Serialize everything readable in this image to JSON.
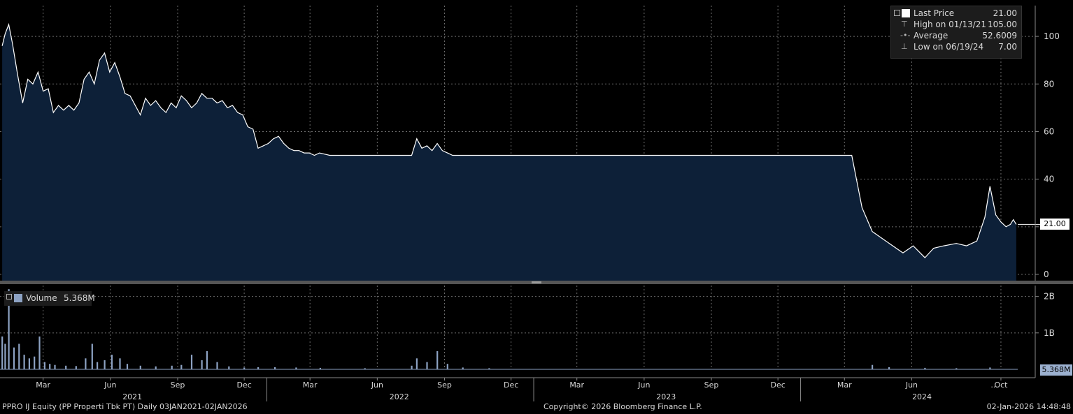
{
  "chart_data": [
    {
      "type": "area",
      "panel": "price",
      "ylim": [
        0,
        110
      ],
      "yticks": [
        {
          "value": 0,
          "label": "0"
        },
        {
          "value": 20,
          "label": "20"
        },
        {
          "value": 40,
          "label": "40"
        },
        {
          "value": 60,
          "label": "60"
        },
        {
          "value": 80,
          "label": "80"
        },
        {
          "value": 100,
          "label": "100"
        }
      ],
      "grid": true,
      "line_color": "#ffffff",
      "fill_color": "#0d2038",
      "series": [
        {
          "name": "Last Price",
          "points": [
            [
              "2021-01-04",
              96
            ],
            [
              "2021-01-08",
              101
            ],
            [
              "2021-01-13",
              105
            ],
            [
              "2021-01-18",
              97
            ],
            [
              "2021-01-25",
              84
            ],
            [
              "2021-02-01",
              72
            ],
            [
              "2021-02-08",
              82
            ],
            [
              "2021-02-15",
              80
            ],
            [
              "2021-02-22",
              85
            ],
            [
              "2021-03-01",
              77
            ],
            [
              "2021-03-08",
              78
            ],
            [
              "2021-03-15",
              68
            ],
            [
              "2021-03-22",
              71
            ],
            [
              "2021-03-29",
              69
            ],
            [
              "2021-04-05",
              71
            ],
            [
              "2021-04-12",
              69
            ],
            [
              "2021-04-19",
              72
            ],
            [
              "2021-04-26",
              82
            ],
            [
              "2021-05-03",
              85
            ],
            [
              "2021-05-10",
              80
            ],
            [
              "2021-05-17",
              90
            ],
            [
              "2021-05-24",
              93
            ],
            [
              "2021-05-31",
              85
            ],
            [
              "2021-06-07",
              89
            ],
            [
              "2021-06-14",
              83
            ],
            [
              "2021-06-21",
              76
            ],
            [
              "2021-06-28",
              75
            ],
            [
              "2021-07-05",
              71
            ],
            [
              "2021-07-12",
              67
            ],
            [
              "2021-07-19",
              74
            ],
            [
              "2021-07-26",
              71
            ],
            [
              "2021-08-02",
              73
            ],
            [
              "2021-08-09",
              70
            ],
            [
              "2021-08-16",
              68
            ],
            [
              "2021-08-23",
              72
            ],
            [
              "2021-08-30",
              70
            ],
            [
              "2021-09-06",
              75
            ],
            [
              "2021-09-13",
              73
            ],
            [
              "2021-09-20",
              70
            ],
            [
              "2021-09-27",
              72
            ],
            [
              "2021-10-04",
              76
            ],
            [
              "2021-10-11",
              74
            ],
            [
              "2021-10-18",
              74
            ],
            [
              "2021-10-25",
              72
            ],
            [
              "2021-11-01",
              73
            ],
            [
              "2021-11-08",
              70
            ],
            [
              "2021-11-15",
              71
            ],
            [
              "2021-11-22",
              68
            ],
            [
              "2021-11-29",
              67
            ],
            [
              "2021-12-06",
              62
            ],
            [
              "2021-12-13",
              61
            ],
            [
              "2021-12-20",
              53
            ],
            [
              "2021-12-27",
              54
            ],
            [
              "2022-01-03",
              55
            ],
            [
              "2022-01-10",
              57
            ],
            [
              "2022-01-17",
              58
            ],
            [
              "2022-01-24",
              55
            ],
            [
              "2022-01-31",
              53
            ],
            [
              "2022-02-07",
              52
            ],
            [
              "2022-02-14",
              52
            ],
            [
              "2022-02-21",
              51
            ],
            [
              "2022-02-28",
              51
            ],
            [
              "2022-03-07",
              50
            ],
            [
              "2022-03-14",
              51
            ],
            [
              "2022-03-28",
              50
            ],
            [
              "2022-05-01",
              50
            ],
            [
              "2022-06-01",
              50
            ],
            [
              "2022-07-01",
              50
            ],
            [
              "2022-07-18",
              50
            ],
            [
              "2022-07-25",
              57
            ],
            [
              "2022-08-01",
              53
            ],
            [
              "2022-08-08",
              54
            ],
            [
              "2022-08-15",
              52
            ],
            [
              "2022-08-22",
              55
            ],
            [
              "2022-08-29",
              52
            ],
            [
              "2022-09-05",
              51
            ],
            [
              "2022-09-12",
              50
            ],
            [
              "2022-09-26",
              50
            ],
            [
              "2023-01-01",
              50
            ],
            [
              "2023-06-01",
              50
            ],
            [
              "2023-12-01",
              50
            ],
            [
              "2024-01-15",
              50
            ],
            [
              "2024-03-01",
              50
            ],
            [
              "2024-03-11",
              50
            ],
            [
              "2024-03-25",
              28
            ],
            [
              "2024-04-08",
              18
            ],
            [
              "2024-04-22",
              15
            ],
            [
              "2024-05-06",
              12
            ],
            [
              "2024-05-20",
              9
            ],
            [
              "2024-06-03",
              12
            ],
            [
              "2024-06-19",
              7
            ],
            [
              "2024-07-01",
              11
            ],
            [
              "2024-07-15",
              12
            ],
            [
              "2024-08-01",
              13
            ],
            [
              "2024-08-15",
              12
            ],
            [
              "2024-08-29",
              14
            ],
            [
              "2024-09-09",
              24
            ],
            [
              "2024-09-16",
              37
            ],
            [
              "2024-09-24",
              25
            ],
            [
              "2024-10-01",
              22
            ],
            [
              "2024-10-08",
              20
            ],
            [
              "2024-10-14",
              21
            ],
            [
              "2024-10-18",
              23
            ],
            [
              "2024-10-22",
              21
            ]
          ]
        }
      ]
    },
    {
      "type": "bar",
      "panel": "volume",
      "ylim": [
        0,
        2300000000
      ],
      "yticks": [
        {
          "value": 1000000000,
          "label": "1B"
        },
        {
          "value": 2000000000,
          "label": "2B"
        }
      ],
      "grid": true,
      "bar_color": "#8da2c3",
      "series": [
        {
          "name": "Volume",
          "points": [
            [
              "2021-01-04",
              900000000
            ],
            [
              "2021-01-08",
              700000000
            ],
            [
              "2021-01-13",
              2200000000
            ],
            [
              "2021-01-20",
              600000000
            ],
            [
              "2021-01-27",
              700000000
            ],
            [
              "2021-02-03",
              400000000
            ],
            [
              "2021-02-10",
              300000000
            ],
            [
              "2021-02-17",
              350000000
            ],
            [
              "2021-02-24",
              900000000
            ],
            [
              "2021-03-03",
              200000000
            ],
            [
              "2021-03-10",
              150000000
            ],
            [
              "2021-03-17",
              120000000
            ],
            [
              "2021-04-01",
              100000000
            ],
            [
              "2021-04-15",
              90000000
            ],
            [
              "2021-04-28",
              300000000
            ],
            [
              "2021-05-07",
              700000000
            ],
            [
              "2021-05-14",
              200000000
            ],
            [
              "2021-05-24",
              250000000
            ],
            [
              "2021-06-03",
              400000000
            ],
            [
              "2021-06-14",
              300000000
            ],
            [
              "2021-06-24",
              150000000
            ],
            [
              "2021-07-12",
              100000000
            ],
            [
              "2021-08-02",
              80000000
            ],
            [
              "2021-08-24",
              100000000
            ],
            [
              "2021-09-06",
              120000000
            ],
            [
              "2021-09-20",
              400000000
            ],
            [
              "2021-10-04",
              250000000
            ],
            [
              "2021-10-11",
              500000000
            ],
            [
              "2021-10-25",
              200000000
            ],
            [
              "2021-11-10",
              80000000
            ],
            [
              "2021-12-01",
              50000000
            ],
            [
              "2021-12-20",
              60000000
            ],
            [
              "2022-01-12",
              60000000
            ],
            [
              "2022-02-10",
              50000000
            ],
            [
              "2022-03-15",
              40000000
            ],
            [
              "2022-05-15",
              30000000
            ],
            [
              "2022-07-18",
              100000000
            ],
            [
              "2022-07-25",
              300000000
            ],
            [
              "2022-08-08",
              200000000
            ],
            [
              "2022-08-22",
              500000000
            ],
            [
              "2022-09-05",
              150000000
            ],
            [
              "2022-09-26",
              50000000
            ],
            [
              "2022-11-01",
              30000000
            ],
            [
              "2024-04-08",
              120000000
            ],
            [
              "2024-05-01",
              60000000
            ],
            [
              "2024-06-19",
              40000000
            ],
            [
              "2024-08-01",
              30000000
            ],
            [
              "2024-09-16",
              50000000
            ],
            [
              "2024-10-22",
              5368000
            ]
          ]
        }
      ]
    }
  ],
  "x_axis": {
    "start": "2021-01-01",
    "end": "2024-10-24",
    "months": [
      {
        "date": "2021-03-01",
        "label": "Mar"
      },
      {
        "date": "2021-06-01",
        "label": "Jun"
      },
      {
        "date": "2021-09-01",
        "label": "Sep"
      },
      {
        "date": "2021-12-01",
        "label": "Dec"
      },
      {
        "date": "2022-03-01",
        "label": "Mar"
      },
      {
        "date": "2022-06-01",
        "label": "Jun"
      },
      {
        "date": "2022-09-01",
        "label": "Sep"
      },
      {
        "date": "2022-12-01",
        "label": "Dec"
      },
      {
        "date": "2023-03-01",
        "label": "Mar"
      },
      {
        "date": "2023-06-01",
        "label": "Jun"
      },
      {
        "date": "2023-09-01",
        "label": "Sep"
      },
      {
        "date": "2023-12-01",
        "label": "Dec"
      },
      {
        "date": "2024-03-01",
        "label": "Mar"
      },
      {
        "date": "2024-06-01",
        "label": "Jun"
      },
      {
        "date": "2024-10-01",
        "label": "Oct"
      }
    ],
    "years": [
      {
        "date": "2021-07-01",
        "label": "2021"
      },
      {
        "date": "2022-07-01",
        "label": "2022"
      },
      {
        "date": "2023-07-01",
        "label": "2023"
      },
      {
        "date": "2024-06-15",
        "label": "2024"
      }
    ],
    "year_boundaries": [
      "2022-01-01",
      "2023-01-01",
      "2024-01-01"
    ],
    "ellipsis": {
      "date": "2024-09-01",
      "label": "..."
    }
  },
  "legend": {
    "last_price_label": "Last Price",
    "last_price_value": "21.00",
    "high_label": "High on 01/13/21",
    "high_value": "105.00",
    "average_label": "Average",
    "average_value": "52.6009",
    "low_label": "Low on 06/19/24",
    "low_value": "7.00"
  },
  "price_tag": "21.00",
  "price_tag_value": 21,
  "volume_legend": {
    "label": "Volume",
    "value": "5.368M"
  },
  "volume_tag": "5.368M",
  "volume_tag_value": 5368000,
  "footer": {
    "left": "PPRO IJ Equity (PP Properti Tbk PT) Daily 03JAN2021-02JAN2026",
    "center": "Copyright© 2026 Bloomberg Finance L.P.",
    "right": "02-Jan-2026 14:48:48"
  },
  "colors": {
    "background": "#000000",
    "fill": "#0d2038",
    "line": "#ffffff",
    "volume": "#8da2c3",
    "grid": "#6b6b6b"
  }
}
